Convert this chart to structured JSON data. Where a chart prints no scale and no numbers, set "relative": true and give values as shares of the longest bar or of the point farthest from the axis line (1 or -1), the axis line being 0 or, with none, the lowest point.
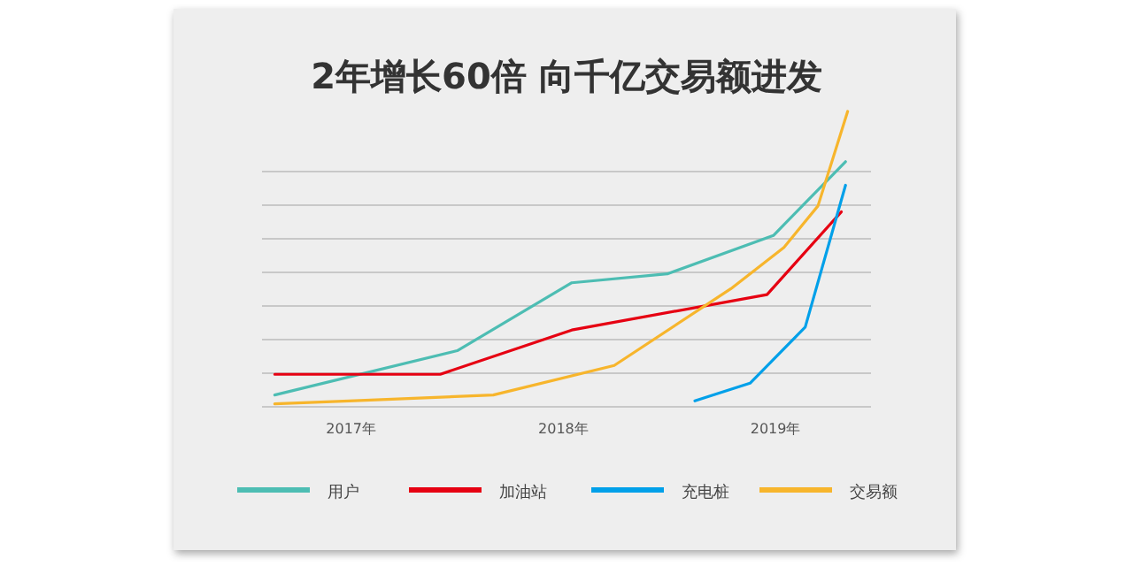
{
  "chart_data": {
    "type": "line",
    "title": "2年增长60倍 向千亿交易额进发",
    "relative": true,
    "grid": "y",
    "legend": "bottom",
    "xlim": [
      2016.58,
      2019.45
    ],
    "xticks": [
      {
        "value": 2017,
        "label": "2017年"
      },
      {
        "value": 2018,
        "label": "2018年"
      },
      {
        "value": 2019,
        "label": "2019年"
      }
    ],
    "series": [
      {
        "name": "用户",
        "color": "#4dbdb3",
        "x": [
          2016.64,
          2017.5,
          2018.04,
          2018.49,
          2018.99,
          2019.33
        ],
        "values": [
          0.04,
          0.19,
          0.42,
          0.45,
          0.58,
          0.83
        ]
      },
      {
        "name": "加油站",
        "color": "#e60012",
        "x": [
          2016.64,
          2017.42,
          2018.04,
          2018.96,
          2019.31
        ],
        "values": [
          0.11,
          0.11,
          0.26,
          0.38,
          0.66
        ]
      },
      {
        "name": "充电桩",
        "color": "#00a0e9",
        "x": [
          2018.62,
          2018.88,
          2019.14,
          2019.33
        ],
        "values": [
          0.02,
          0.08,
          0.27,
          0.75
        ]
      },
      {
        "name": "交易额",
        "color": "#f7b52c",
        "x": [
          2016.64,
          2016.99,
          2017.67,
          2018.24,
          2018.79,
          2019.04,
          2019.2,
          2019.34
        ],
        "values": [
          0.01,
          0.02,
          0.04,
          0.14,
          0.4,
          0.54,
          0.68,
          1.0
        ]
      }
    ]
  }
}
